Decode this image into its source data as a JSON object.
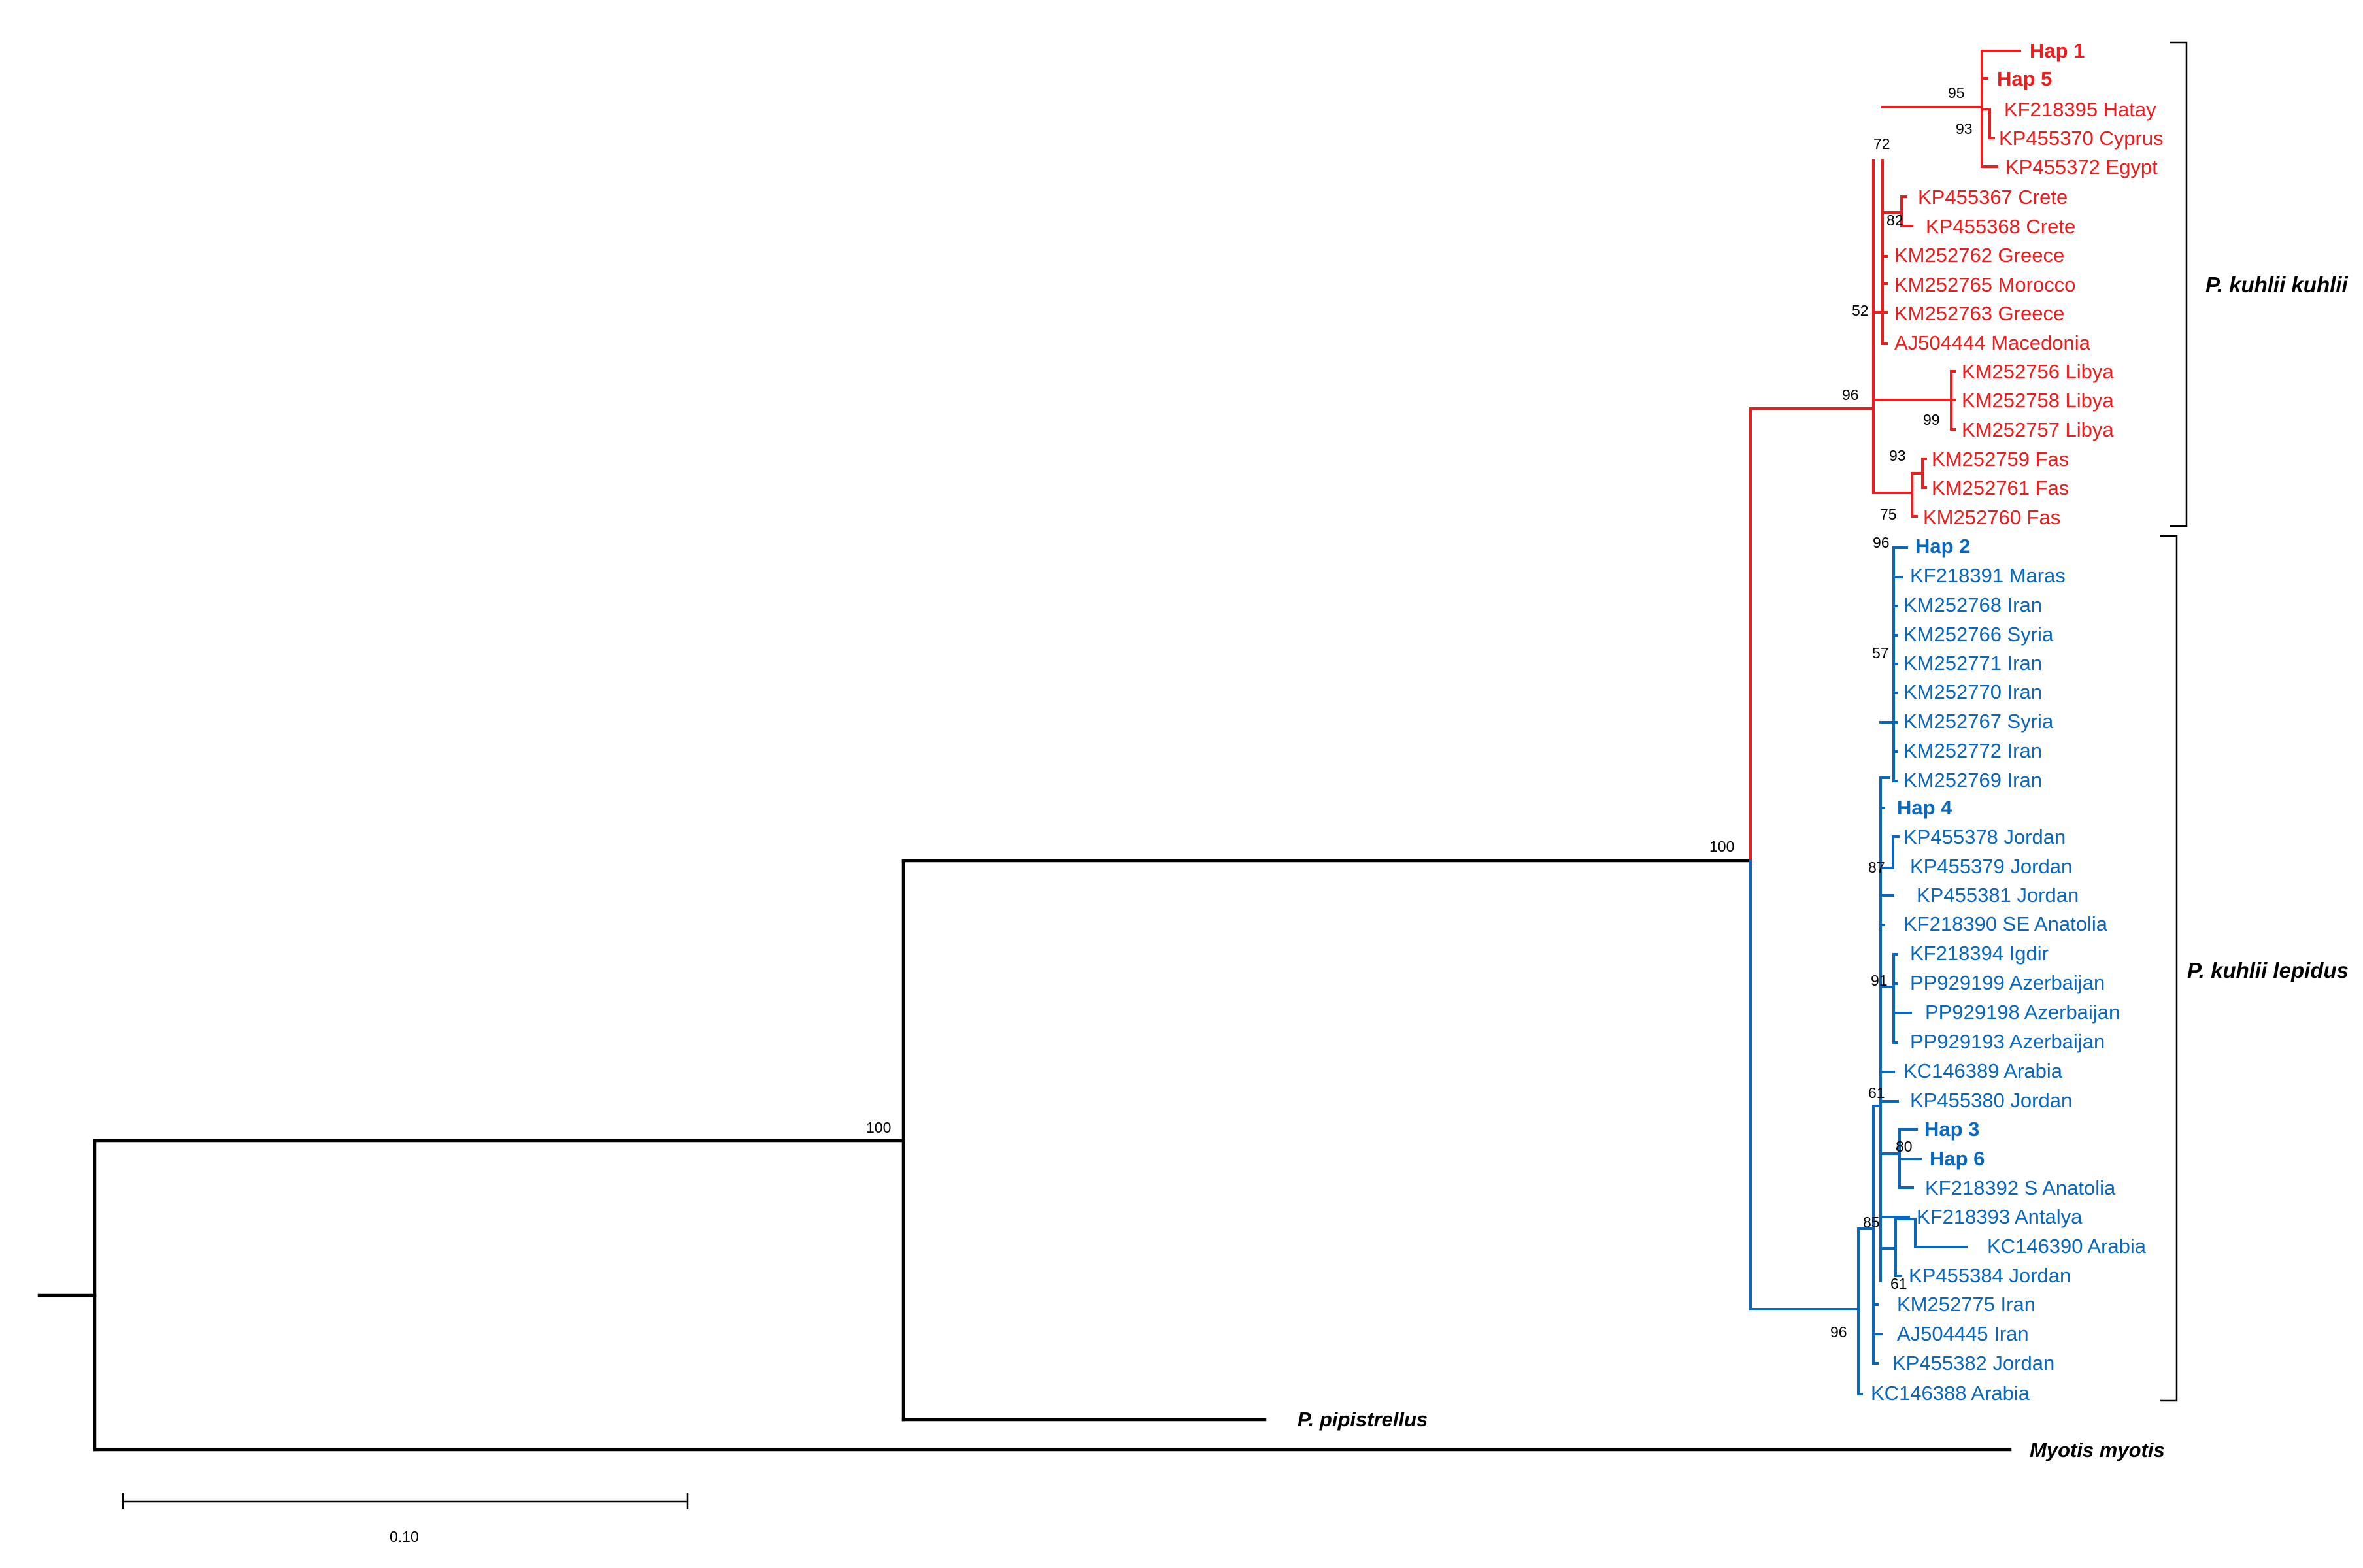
{
  "colors": {
    "kuhlii": "#ee1c1c",
    "lepidus": "#0a67c0",
    "outgroup": "#000000"
  },
  "tips": {
    "hap1": "Hap 1",
    "hap5": "Hap 5",
    "hatay": "KF218395 Hatay",
    "cyprus": "KP455370 Cyprus",
    "egypt": "KP455372 Egypt",
    "crete1": "KP455367 Crete",
    "crete2": "KP455368 Crete",
    "greece1": "KM252762 Greece",
    "morocco": "KM252765 Morocco",
    "greece2": "KM252763 Greece",
    "macedonia": "AJ504444 Macedonia",
    "libya1": "KM252756 Libya",
    "libya2": "KM252758 Libya",
    "libya3": "KM252757 Libya",
    "fas1": "KM252759 Fas",
    "fas2": "KM252761 Fas",
    "fas3": "KM252760 Fas",
    "hap2": "Hap 2",
    "maras": "KF218391 Maras",
    "iran1": "KM252768 Iran",
    "syria1": "KM252766 Syria",
    "iran2": "KM252771 Iran",
    "iran3": "KM252770 Iran",
    "syria2": "KM252767 Syria",
    "iran4": "KM252772 Iran",
    "iran5": "KM252769 Iran",
    "hap4": "Hap 4",
    "jordan1": "KP455378 Jordan",
    "jordan2": "KP455379 Jordan",
    "jordan3": "KP455381 Jordan",
    "seanatolia": "KF218390 SE Anatolia",
    "igdir": "KF218394 Igdir",
    "azer1": "PP929199 Azerbaijan",
    "azer2": "PP929198 Azerbaijan",
    "azer3": "PP929193 Azerbaijan",
    "arabia1": "KC146389 Arabia",
    "jordan4": "KP455380 Jordan",
    "hap3": "Hap 3",
    "hap6": "Hap 6",
    "sanatolia": "KF218392 S Anatolia",
    "antalya": "KF218393 Antalya",
    "arabia2": "KC146390 Arabia",
    "jordan5": "KP455384 Jordan",
    "iran6": "KM252775 Iran",
    "iran7": "AJ504445 Iran",
    "jordan6": "KP455382 Jordan",
    "arabia3": "KC146388 Arabia",
    "pipistrellus": "P. pipistrellus",
    "myotis": "Myotis myotis"
  },
  "supports": {
    "s95": "95",
    "s93a": "93",
    "s72": "72",
    "s82": "82",
    "s52": "52",
    "s96a": "96",
    "s99": "99",
    "s93b": "93",
    "s75": "75",
    "s96b": "96",
    "s57": "57",
    "s87": "87",
    "s91": "91",
    "s61a": "61",
    "s80": "80",
    "s85": "85",
    "s61b": "61",
    "s96c": "96",
    "s100a": "100",
    "s100b": "100"
  },
  "clades": {
    "kuhlii": "P. kuhlii kuhlii",
    "lepidus": "P. kuhlii lepidus"
  },
  "scale_bar": {
    "value": "0.10"
  }
}
